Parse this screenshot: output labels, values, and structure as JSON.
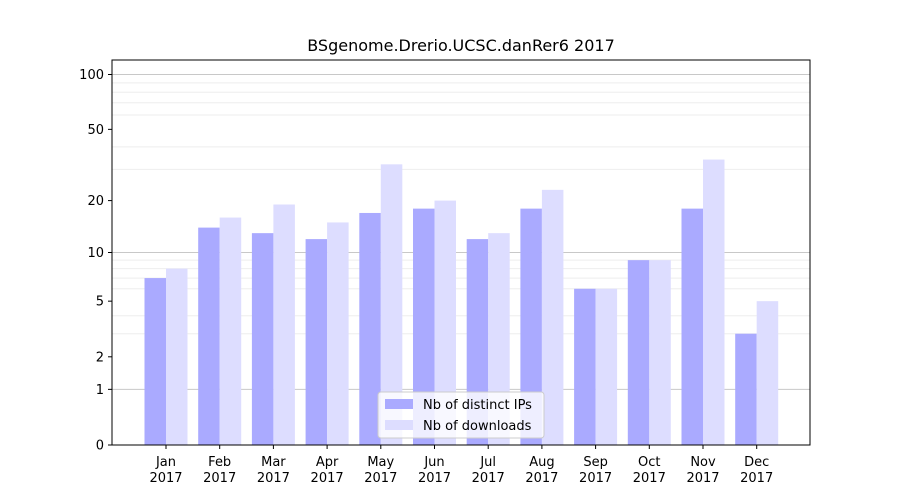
{
  "chart_data": {
    "type": "bar",
    "title": "BSgenome.Drerio.UCSC.danRer6 2017",
    "xlabel": "",
    "ylabel": "",
    "y_scale": "log(1+y)",
    "ylim": [
      0,
      120
    ],
    "grid": true,
    "legend_position": "bottom-center",
    "categories": [
      "Jan\n2017",
      "Feb\n2017",
      "Mar\n2017",
      "Apr\n2017",
      "May\n2017",
      "Jun\n2017",
      "Jul\n2017",
      "Aug\n2017",
      "Sep\n2017",
      "Oct\n2017",
      "Nov\n2017",
      "Dec\n2017"
    ],
    "y_ticks": [
      0,
      1,
      2,
      5,
      10,
      20,
      50,
      100
    ],
    "series": [
      {
        "name": "Nb of distinct IPs",
        "color": "#aaaaff",
        "values": [
          7,
          14,
          13,
          12,
          17,
          18,
          12,
          18,
          6,
          9,
          18,
          3
        ]
      },
      {
        "name": "Nb of downloads",
        "color": "#ddddff",
        "values": [
          8,
          16,
          19,
          15,
          32,
          20,
          13,
          23,
          6,
          9,
          34,
          5
        ]
      }
    ]
  }
}
